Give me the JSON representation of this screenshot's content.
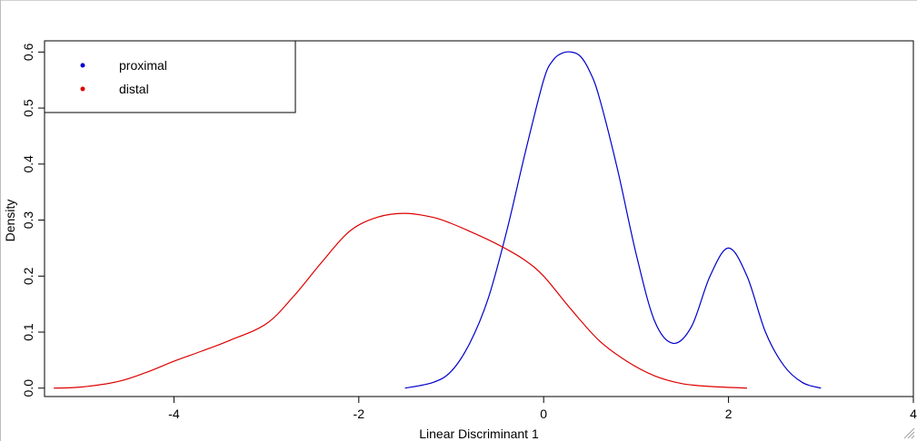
{
  "chart_data": {
    "type": "line",
    "title": "",
    "xlabel": "Linear Discriminant 1",
    "ylabel": "Density",
    "xlim": [
      -5.4,
      4.0
    ],
    "ylim": [
      -0.015,
      0.62
    ],
    "x_ticks": [
      -4,
      -2,
      0,
      2,
      4
    ],
    "x_tick_labels": [
      "-4",
      "-2",
      "0",
      "2",
      "4"
    ],
    "y_ticks": [
      0.0,
      0.1,
      0.2,
      0.3,
      0.4,
      0.5,
      0.6
    ],
    "y_tick_labels": [
      "0.0",
      "0.1",
      "0.2",
      "0.3",
      "0.4",
      "0.5",
      "0.6"
    ],
    "grid": false,
    "legend_position": "top-left",
    "legend": [
      {
        "label": "proximal",
        "color": "#0000cc"
      },
      {
        "label": "distal",
        "color": "#dd0000"
      }
    ],
    "series": [
      {
        "name": "proximal",
        "color": "#0000cc",
        "x": [
          -1.5,
          -1.2,
          -1.0,
          -0.8,
          -0.6,
          -0.4,
          -0.2,
          0.0,
          0.1,
          0.2,
          0.3,
          0.4,
          0.5,
          0.6,
          0.8,
          1.0,
          1.2,
          1.4,
          1.6,
          1.8,
          2.0,
          2.2,
          2.4,
          2.6,
          2.8,
          3.0
        ],
        "y": [
          0.0,
          0.01,
          0.03,
          0.08,
          0.16,
          0.28,
          0.42,
          0.55,
          0.585,
          0.598,
          0.6,
          0.592,
          0.565,
          0.52,
          0.39,
          0.24,
          0.12,
          0.08,
          0.11,
          0.2,
          0.25,
          0.2,
          0.1,
          0.04,
          0.01,
          0.0
        ]
      },
      {
        "name": "distal",
        "color": "#dd0000",
        "x": [
          -5.3,
          -5.0,
          -4.6,
          -4.3,
          -4.0,
          -3.7,
          -3.4,
          -3.0,
          -2.7,
          -2.4,
          -2.1,
          -1.8,
          -1.5,
          -1.2,
          -1.0,
          -0.8,
          -0.6,
          -0.4,
          -0.2,
          0.0,
          0.3,
          0.6,
          0.9,
          1.2,
          1.5,
          1.8,
          2.2
        ],
        "y": [
          0.0,
          0.002,
          0.012,
          0.028,
          0.048,
          0.066,
          0.085,
          0.115,
          0.165,
          0.225,
          0.28,
          0.305,
          0.312,
          0.305,
          0.294,
          0.28,
          0.265,
          0.248,
          0.228,
          0.2,
          0.14,
          0.085,
          0.048,
          0.022,
          0.008,
          0.003,
          0.0
        ]
      }
    ]
  }
}
